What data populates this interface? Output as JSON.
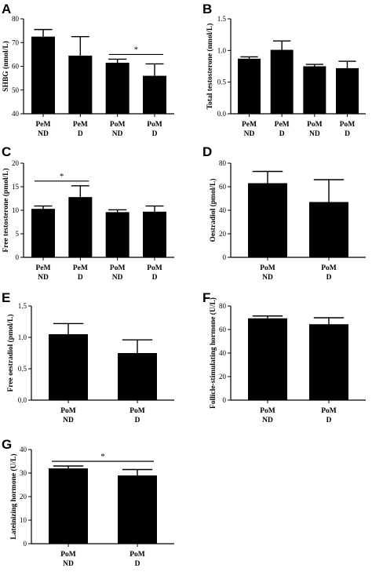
{
  "colors": {
    "bar": "#000000",
    "axis": "#000000",
    "background": "#ffffff"
  },
  "chart_data": [
    {
      "panel": "A",
      "type": "bar",
      "categories": [
        "PeM\nND",
        "PeM\nD",
        "PoM\nND",
        "PoM\nD"
      ],
      "values": [
        72.5,
        64.5,
        61.5,
        56
      ],
      "errors": [
        3,
        8,
        1.5,
        5
      ],
      "ylabel": "SHBG (nmol/L)",
      "ylim": [
        40,
        80
      ],
      "yticks": [
        "40",
        "50",
        "60",
        "70",
        "80"
      ],
      "ytick_values": [
        40,
        50,
        60,
        70,
        80
      ],
      "significance": [
        {
          "between": [
            2,
            3
          ],
          "label": "*"
        }
      ],
      "grid": false
    },
    {
      "panel": "B",
      "type": "bar",
      "categories": [
        "PeM\nND",
        "PeM\nD",
        "PoM\nND",
        "PoM\nD"
      ],
      "values": [
        0.87,
        1.01,
        0.75,
        0.72
      ],
      "errors": [
        0.03,
        0.14,
        0.03,
        0.11
      ],
      "ylabel": "Total testosterone (nmol/L)",
      "ylim": [
        0,
        1.5
      ],
      "yticks": [
        "0.0",
        "0.5",
        "1.0",
        "1.5"
      ],
      "ytick_values": [
        0,
        0.5,
        1.0,
        1.5
      ],
      "significance": [],
      "grid": false
    },
    {
      "panel": "C",
      "type": "bar",
      "categories": [
        "PeM\nND",
        "PeM\nD",
        "PoM\nND",
        "PoM\nD"
      ],
      "values": [
        10.3,
        12.8,
        9.6,
        9.7
      ],
      "errors": [
        0.6,
        2.4,
        0.5,
        1.2
      ],
      "ylabel": "Free testosterone (pmol/L)",
      "ylim": [
        0,
        20
      ],
      "yticks": [
        "0",
        "5",
        "10",
        "15",
        "20"
      ],
      "ytick_values": [
        0,
        5,
        10,
        15,
        20
      ],
      "significance": [
        {
          "between": [
            0,
            1
          ],
          "label": "*"
        }
      ],
      "grid": false
    },
    {
      "panel": "D",
      "type": "bar",
      "categories": [
        "PoM\nND",
        "PoM\nD"
      ],
      "values": [
        63,
        47
      ],
      "errors": [
        10,
        19
      ],
      "ylabel": "Oestradiol (pmol/L)",
      "ylim": [
        0,
        80
      ],
      "yticks": [
        "0",
        "20",
        "40",
        "60",
        "80"
      ],
      "ytick_values": [
        0,
        20,
        40,
        60,
        80
      ],
      "significance": [],
      "grid": false
    },
    {
      "panel": "E",
      "type": "bar",
      "categories": [
        "PoM\nND",
        "PoM\nD"
      ],
      "values": [
        1.05,
        0.75
      ],
      "errors": [
        0.17,
        0.21
      ],
      "ylabel": "Free oestradiol (pmol/L)",
      "ylim": [
        0,
        1.5
      ],
      "yticks": [
        "0.0",
        "0.5",
        "1.0",
        "1.5"
      ],
      "ytick_values": [
        0,
        0.5,
        1.0,
        1.5
      ],
      "significance": [],
      "grid": false
    },
    {
      "panel": "F",
      "type": "bar",
      "categories": [
        "PoM\nND",
        "PoM\nD"
      ],
      "values": [
        69.5,
        64.5
      ],
      "errors": [
        2,
        5.5
      ],
      "ylabel": "Follicle-stimulating hormone (U/L)",
      "ylim": [
        0,
        80
      ],
      "yticks": [
        "0",
        "20",
        "40",
        "60",
        "80"
      ],
      "ytick_values": [
        0,
        20,
        40,
        60,
        80
      ],
      "significance": [],
      "grid": false
    },
    {
      "panel": "G",
      "type": "bar",
      "categories": [
        "PoM\nND",
        "PoM\nD"
      ],
      "values": [
        32,
        29
      ],
      "errors": [
        1,
        2.5
      ],
      "ylabel": "Lateinizing hormone (U/L)",
      "ylim": [
        0,
        40
      ],
      "yticks": [
        "0",
        "10",
        "20",
        "30",
        "40"
      ],
      "ytick_values": [
        0,
        10,
        20,
        30,
        40
      ],
      "significance": [
        {
          "between": [
            0,
            1
          ],
          "label": "*"
        }
      ],
      "grid": false
    }
  ]
}
